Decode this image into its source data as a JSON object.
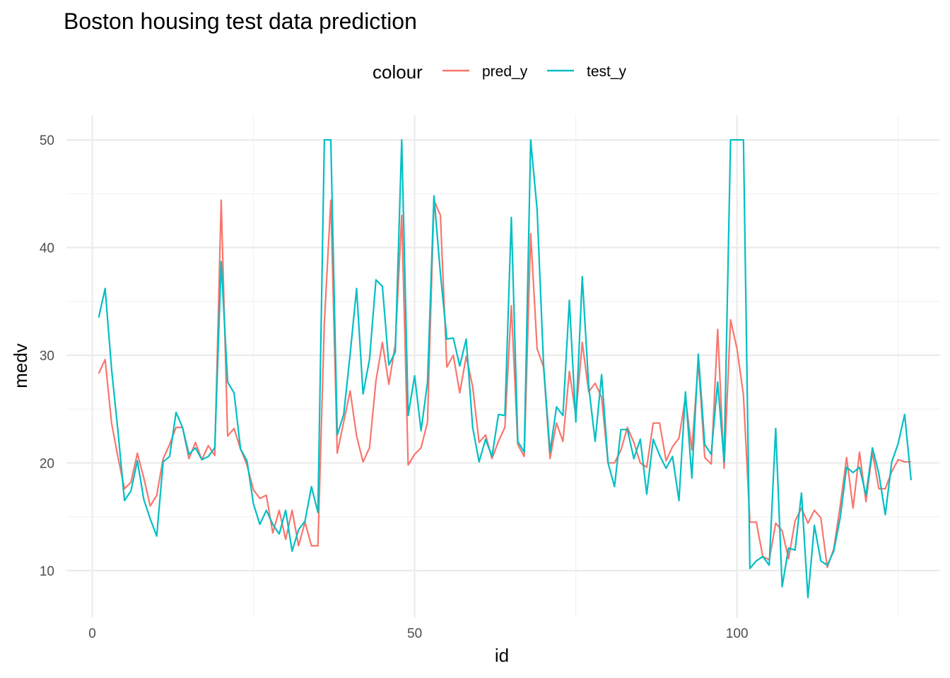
{
  "chart_data": {
    "type": "line",
    "title": "Boston housing test data prediction",
    "xlabel": "id",
    "ylabel": "medv",
    "legend_title": "colour",
    "legend_position": "top",
    "grid": true,
    "xlim": [
      -4,
      131.5
    ],
    "ylim": [
      5.6,
      52.3
    ],
    "x_ticks": [
      0,
      50,
      100
    ],
    "y_ticks": [
      10,
      20,
      30,
      40,
      50
    ],
    "x_minor_ticks": [
      25,
      75,
      125
    ],
    "y_minor_ticks": [
      15,
      25,
      35,
      45
    ],
    "x": [
      1,
      2,
      3,
      4,
      5,
      6,
      7,
      8,
      9,
      10,
      11,
      12,
      13,
      14,
      15,
      16,
      17,
      18,
      19,
      20,
      21,
      22,
      23,
      24,
      25,
      26,
      27,
      28,
      29,
      30,
      31,
      32,
      33,
      34,
      35,
      36,
      37,
      38,
      39,
      40,
      41,
      42,
      43,
      44,
      45,
      46,
      47,
      48,
      49,
      50,
      51,
      52,
      53,
      54,
      55,
      56,
      57,
      58,
      59,
      60,
      61,
      62,
      63,
      64,
      65,
      66,
      67,
      68,
      69,
      70,
      71,
      72,
      73,
      74,
      75,
      76,
      77,
      78,
      79,
      80,
      81,
      82,
      83,
      84,
      85,
      86,
      87,
      88,
      89,
      90,
      91,
      92,
      93,
      94,
      95,
      96,
      97,
      98,
      99,
      100,
      101,
      102,
      103,
      104,
      105,
      106,
      107,
      108,
      109,
      110,
      111,
      112,
      113,
      114,
      115,
      116,
      117,
      118,
      119,
      120,
      121,
      122,
      123,
      124,
      125,
      126,
      127
    ],
    "series": [
      {
        "name": "pred_y",
        "color": "#F8766D",
        "values": [
          28.3,
          29.6,
          23.7,
          20.5,
          17.6,
          18.2,
          20.9,
          18.6,
          16.0,
          17.0,
          20.4,
          21.7,
          23.3,
          23.3,
          20.4,
          21.9,
          20.3,
          21.6,
          20.7,
          44.4,
          22.5,
          23.2,
          21.3,
          19.8,
          17.5,
          16.7,
          17.0,
          13.5,
          15.6,
          12.9,
          15.6,
          12.3,
          14.5,
          12.3,
          12.3,
          33.0,
          44.4,
          20.9,
          23.8,
          26.7,
          22.5,
          20.1,
          21.4,
          27.6,
          31.2,
          27.3,
          31.0,
          43.0,
          19.8,
          20.8,
          21.4,
          23.8,
          44.4,
          43.0,
          28.9,
          30.0,
          26.5,
          29.9,
          27.1,
          21.9,
          22.6,
          20.4,
          22.0,
          23.3,
          34.6,
          21.7,
          20.6,
          41.3,
          30.6,
          28.9,
          20.4,
          23.7,
          22.0,
          28.5,
          24.4,
          31.2,
          26.6,
          27.4,
          26.1,
          20.0,
          20.0,
          21.2,
          23.3,
          21.9,
          20.0,
          19.6,
          23.7,
          23.7,
          20.2,
          21.5,
          22.3,
          26.1,
          21.2,
          29.4,
          20.5,
          19.9,
          32.4,
          19.5,
          33.3,
          30.6,
          26.3,
          14.5,
          14.5,
          11.3,
          11.0,
          14.4,
          13.7,
          11.1,
          14.6,
          15.8,
          14.4,
          15.6,
          14.9,
          10.3,
          12.0,
          16.0,
          20.5,
          15.8,
          21.0,
          16.4,
          21.0,
          17.6,
          17.6,
          19.2,
          20.3,
          20.1,
          20.1
        ]
      },
      {
        "name": "test_y",
        "color": "#00BFC4",
        "values": [
          33.5,
          36.2,
          28.7,
          22.9,
          16.5,
          17.4,
          20.2,
          16.6,
          14.8,
          13.2,
          20.1,
          20.6,
          24.7,
          23.3,
          20.8,
          21.4,
          20.3,
          20.6,
          21.4,
          38.7,
          27.5,
          26.5,
          21.3,
          20.2,
          16.2,
          14.3,
          15.6,
          14.3,
          13.4,
          15.6,
          11.8,
          13.8,
          14.6,
          17.8,
          15.4,
          50.0,
          50.0,
          22.6,
          24.5,
          30.1,
          36.2,
          26.4,
          29.6,
          37.0,
          36.4,
          29.1,
          30.3,
          50.0,
          24.4,
          28.1,
          23.0,
          27.5,
          44.8,
          37.6,
          31.5,
          31.6,
          29.0,
          31.5,
          23.3,
          20.1,
          22.2,
          20.6,
          24.5,
          24.4,
          42.8,
          22.0,
          21.0,
          50.0,
          43.5,
          29.1,
          21.0,
          25.2,
          24.4,
          35.1,
          23.8,
          37.3,
          27.1,
          22.0,
          28.2,
          20.0,
          17.8,
          23.1,
          23.1,
          20.4,
          22.2,
          17.1,
          22.2,
          20.7,
          19.5,
          20.6,
          16.5,
          26.6,
          18.6,
          30.1,
          21.7,
          20.8,
          27.5,
          20.1,
          50.0,
          50.0,
          50.0,
          10.2,
          10.9,
          11.3,
          10.5,
          23.2,
          8.5,
          12.1,
          11.9,
          17.2,
          7.5,
          14.2,
          10.9,
          10.5,
          11.8,
          14.9,
          19.6,
          19.1,
          19.6,
          17.0,
          21.4,
          19.0,
          15.2,
          20.1,
          21.8,
          24.5,
          18.4
        ]
      }
    ]
  }
}
